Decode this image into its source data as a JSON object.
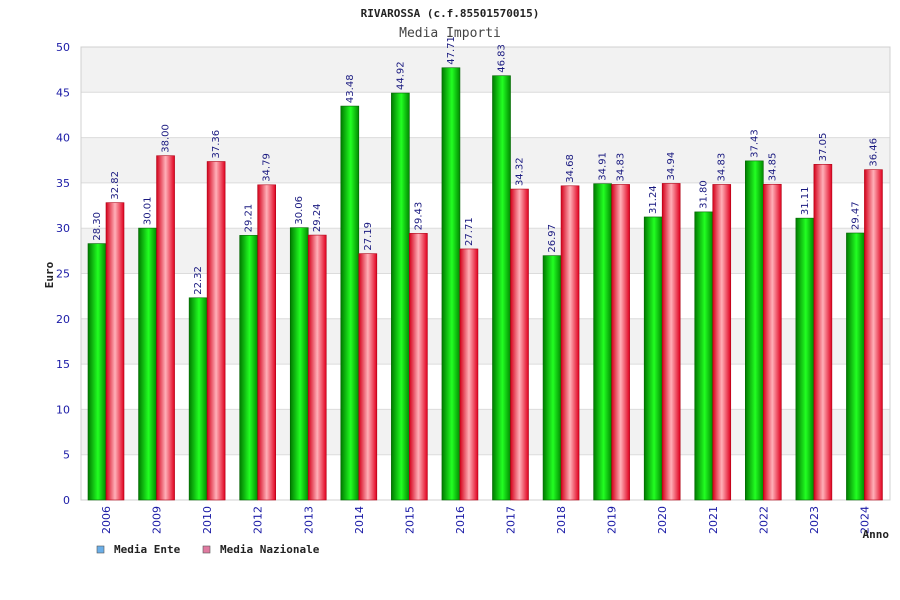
{
  "chart_data": {
    "type": "bar",
    "title": "RIVAROSSA (c.f.85501570015)",
    "subtitle": "Media Importi",
    "xlabel": "Anno",
    "ylabel": "Euro",
    "ylim": [
      0,
      50
    ],
    "yticks": [
      0,
      5,
      10,
      15,
      20,
      25,
      30,
      35,
      40,
      45,
      50
    ],
    "categories": [
      "2006",
      "2009",
      "2010",
      "2012",
      "2013",
      "2014",
      "2015",
      "2016",
      "2017",
      "2018",
      "2019",
      "2020",
      "2021",
      "2022",
      "2023",
      "2024"
    ],
    "series": [
      {
        "name": "Media Ente",
        "values": [
          28.3,
          30.01,
          22.32,
          29.21,
          30.06,
          43.48,
          44.92,
          47.71,
          46.83,
          26.97,
          34.91,
          31.24,
          31.8,
          37.43,
          31.11,
          29.47
        ],
        "labels": [
          "28.30",
          "30.01",
          "22.32",
          "29.21",
          "30.06",
          "43.48",
          "44.92",
          "47.71",
          "46.83",
          "26.97",
          "34.91",
          "31.24",
          "31.80",
          "37.43",
          "31.11",
          "29.47"
        ]
      },
      {
        "name": "Media Nazionale",
        "values": [
          32.82,
          38.0,
          37.36,
          34.79,
          29.24,
          27.19,
          29.43,
          27.71,
          34.32,
          34.68,
          34.83,
          34.94,
          34.83,
          34.85,
          37.05,
          36.46
        ],
        "labels": [
          "32.82",
          "38.00",
          "37.36",
          "34.79",
          "29.24",
          "27.19",
          "29.43",
          "27.71",
          "34.32",
          "34.68",
          "34.83",
          "34.94",
          "34.83",
          "34.85",
          "37.05",
          "36.46"
        ]
      }
    ],
    "legend": {
      "placement": "bottom-left",
      "items": [
        {
          "label": "Media Ente",
          "color": "#6aaee8"
        },
        {
          "label": "Media Nazionale",
          "color": "#e07aa0"
        }
      ]
    },
    "grid": true,
    "colors": {
      "ente_dark": "#007a00",
      "ente_light": "#22ff22",
      "naz_dark": "#d4001a",
      "naz_light": "#ffb0b8",
      "band": "#f2f2f2"
    }
  }
}
